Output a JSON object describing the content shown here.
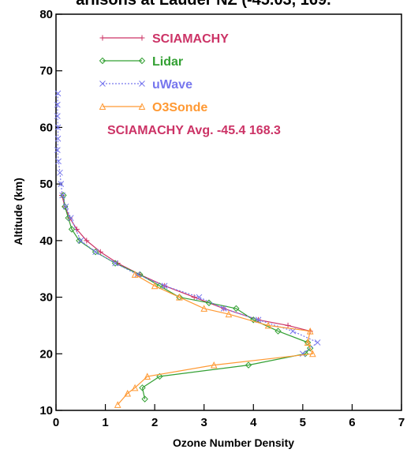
{
  "chart_data": {
    "type": "line",
    "title": "Lauder NZ Ozone Profile Comparison",
    "title_visible_text": "ariisons at Lauder NZ (-45.03, 169.",
    "xlabel": "Ozone Number Density",
    "ylabel": "Altitude (km)",
    "xlim": [
      0,
      7
    ],
    "ylim": [
      10,
      80
    ],
    "x_ticks": [
      "0",
      "1",
      "2",
      "3",
      "4",
      "5",
      "6",
      "7"
    ],
    "y_ticks": [
      "10",
      "20",
      "30",
      "40",
      "50",
      "60",
      "70",
      "80"
    ],
    "grid": false,
    "legend_position": "top-left",
    "annotation": "SCIAMACHY Avg. -45.4 168.3",
    "series": [
      {
        "name": "SCIAMACHY",
        "color": "#cc3366",
        "marker": "plus",
        "dash": "solid",
        "x": [
          0.12,
          0.18,
          0.28,
          0.42,
          0.62,
          0.9,
          1.25,
          1.7,
          2.2,
          2.8,
          3.4,
          4.1,
          4.7,
          5.15
        ],
        "y": [
          48,
          46,
          44,
          42,
          40,
          38,
          36,
          34,
          32,
          30,
          28,
          26,
          25,
          24
        ]
      },
      {
        "name": "Lidar",
        "color": "#33a033",
        "marker": "diamond",
        "dash": "solid",
        "x": [
          0.15,
          0.18,
          0.25,
          0.32,
          0.47,
          0.8,
          1.2,
          1.7,
          2.1,
          2.5,
          3.1,
          3.65,
          4.0,
          4.5,
          5.1,
          5.15,
          5.05,
          3.9,
          2.1,
          1.75,
          1.8
        ],
        "y": [
          48,
          46,
          44,
          42,
          40,
          38,
          36,
          34,
          32,
          30,
          29,
          28,
          26,
          24,
          22,
          21,
          20,
          18,
          16,
          14,
          12
        ]
      },
      {
        "name": "uWave",
        "color": "#7777ee",
        "marker": "cross",
        "dash": "dotted",
        "x": [
          0.04,
          0.03,
          0.03,
          0.04,
          0.04,
          0.03,
          0.05,
          0.08,
          0.1,
          0.13,
          0.2,
          0.3,
          0.5,
          0.8,
          1.2,
          1.65,
          2.2,
          2.9,
          3.4,
          4.1,
          4.8,
          5.3,
          5.0
        ],
        "y": [
          66,
          64,
          62,
          60,
          58,
          56,
          54,
          52,
          50,
          48,
          46,
          44,
          40,
          38,
          36,
          34,
          32,
          30,
          28,
          26,
          24,
          22,
          20
        ]
      },
      {
        "name": "O3Sonde",
        "color": "#ff9933",
        "marker": "triangle",
        "dash": "solid",
        "x": [
          1.6,
          2.0,
          2.5,
          3.0,
          3.5,
          4.3,
          5.15,
          5.1,
          5.2,
          3.2,
          1.85,
          1.6,
          1.45,
          1.25
        ],
        "y": [
          34,
          32,
          30,
          28,
          27,
          25,
          24,
          22,
          20,
          18,
          16,
          14,
          13,
          11
        ]
      }
    ]
  }
}
